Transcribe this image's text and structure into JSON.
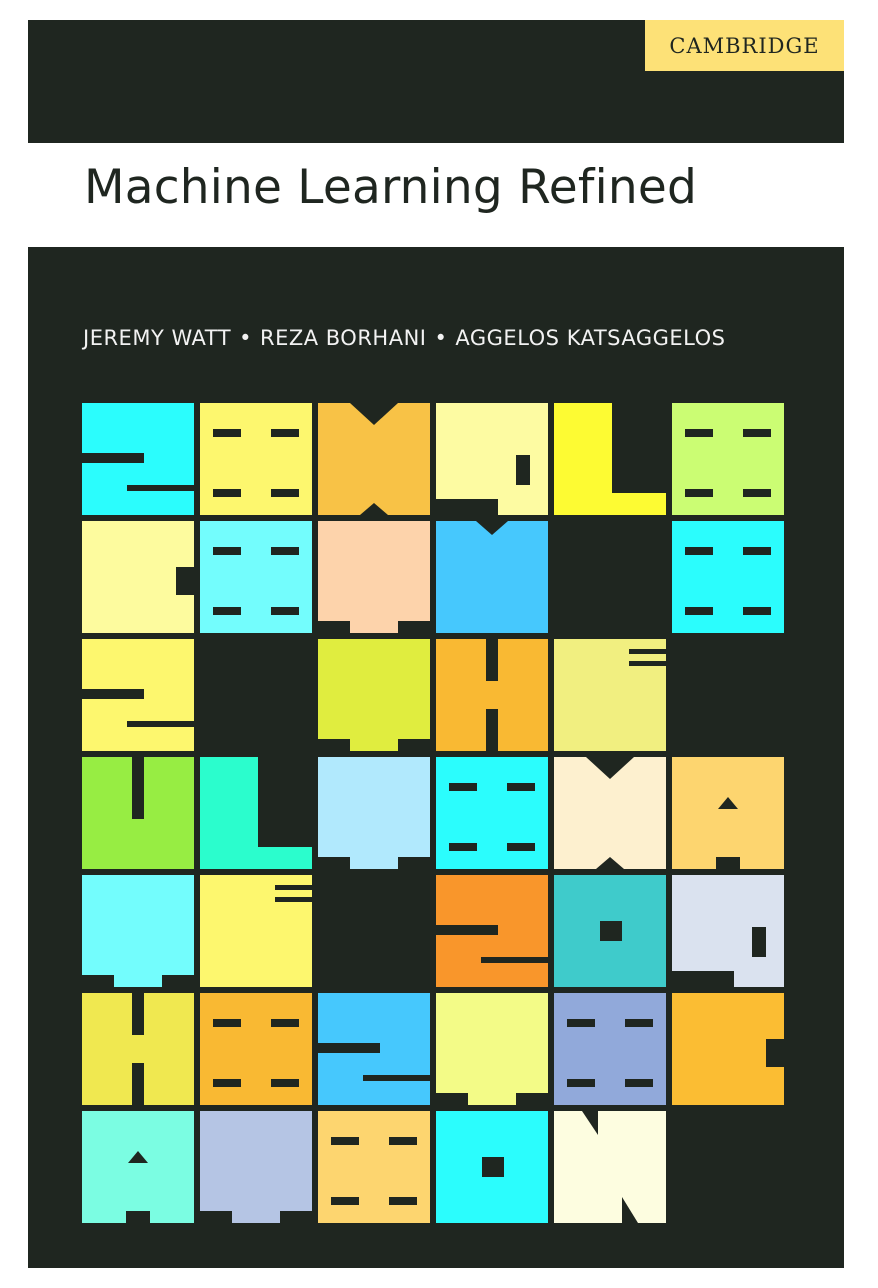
{
  "publisher": "CAMBRIDGE",
  "title": "Machine Learning Refined",
  "authors": [
    "JEREMY WATT",
    "REZA BORHANI",
    "AGGELOS KATSAGGELOS"
  ],
  "author_separator": "•",
  "colors": {
    "dark_background": "#1f2620",
    "publisher_badge": "#fde177",
    "title_background": "#ffffff",
    "title_text": "#1f2620",
    "author_text": "#f2f2f2"
  },
  "mosaic": {
    "rows": [
      [
        {
          "color": "#2bfdfd",
          "glyph": "S"
        },
        {
          "color": "#fdf76e",
          "glyph": "I"
        },
        {
          "color": "#f8c246",
          "glyph": "M"
        },
        {
          "color": "#fdfba2",
          "glyph": "P"
        },
        {
          "color": "#fdfb33",
          "glyph": "L"
        },
        {
          "color": "#cbfd73",
          "glyph": "I"
        }
      ],
      [
        {
          "color": "#fdfb9e",
          "glyph": "C"
        },
        {
          "color": "#73fdfd",
          "glyph": "I"
        },
        {
          "color": "#fdd3ab",
          "glyph": "T"
        },
        {
          "color": "#46c8fd",
          "glyph": "Y"
        },
        null,
        {
          "color": "#2bfdfd",
          "glyph": "I"
        }
      ],
      [
        {
          "color": "#fdf76e",
          "glyph": "S"
        },
        null,
        {
          "color": "#e0ed3f",
          "glyph": "T"
        },
        {
          "color": "#f9b933",
          "glyph": "H"
        },
        {
          "color": "#f1ef80",
          "glyph": "E"
        },
        null
      ],
      [
        {
          "color": "#97ed43",
          "glyph": "U"
        },
        {
          "color": "#2bfdcd",
          "glyph": "L"
        },
        {
          "color": "#b1e9fd",
          "glyph": "T"
        },
        {
          "color": "#2bfdfd",
          "glyph": "I"
        },
        {
          "color": "#fdf0cf",
          "glyph": "M"
        },
        {
          "color": "#fdd56f",
          "glyph": "A"
        }
      ],
      [
        {
          "color": "#73fdfd",
          "glyph": "T"
        },
        {
          "color": "#fdf76e",
          "glyph": "E"
        },
        null,
        {
          "color": "#f9962b",
          "glyph": "S"
        },
        {
          "color": "#3fcbcb",
          "glyph": "O"
        },
        {
          "color": "#dae2ef",
          "glyph": "P"
        }
      ],
      [
        {
          "color": "#f0e850",
          "glyph": "H"
        },
        {
          "color": "#f9b933",
          "glyph": "I"
        },
        {
          "color": "#46c8fd",
          "glyph": "S"
        },
        {
          "color": "#f3fb87",
          "glyph": "T"
        },
        {
          "color": "#91a9da",
          "glyph": "I"
        },
        {
          "color": "#fbbd33",
          "glyph": "C"
        }
      ],
      [
        {
          "color": "#7bfde2",
          "glyph": "A"
        },
        {
          "color": "#b5c5e4",
          "glyph": "T"
        },
        {
          "color": "#fdd56f",
          "glyph": "I"
        },
        {
          "color": "#2bfdfd",
          "glyph": "O"
        },
        {
          "color": "#fdfde0",
          "glyph": "N"
        },
        null
      ]
    ]
  }
}
